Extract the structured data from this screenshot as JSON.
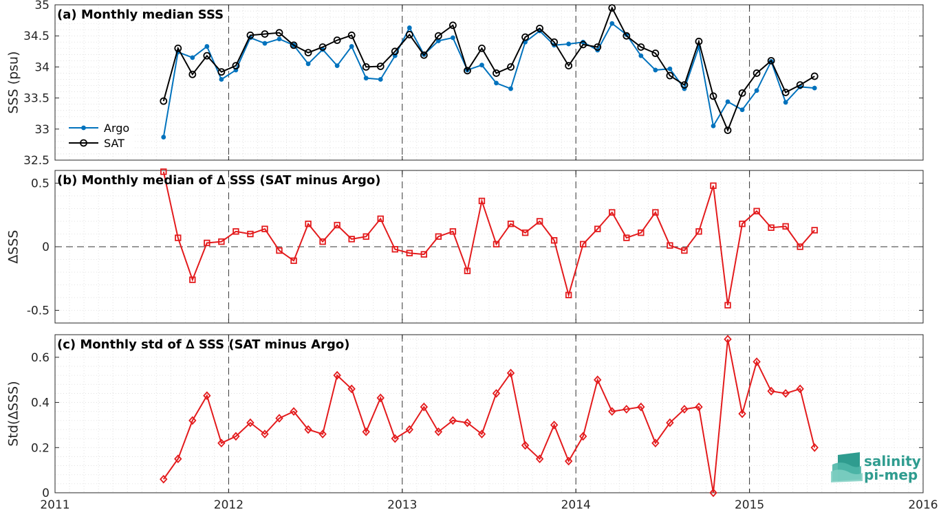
{
  "chart_data": [
    {
      "type": "line",
      "title": "(a) Monthly median SSS",
      "ylabel": "SSS (psu)",
      "xlim": [
        2011,
        2016
      ],
      "ylim": [
        32.5,
        35
      ],
      "yticks": [
        32.5,
        33,
        33.5,
        34,
        34.5,
        35
      ],
      "ytick_labels": [
        "32.5",
        "33",
        "33.5",
        "34",
        "34.5",
        "35"
      ],
      "grid": "minor-dotted",
      "legend": "bottom-left",
      "series": [
        {
          "name": "Argo",
          "color": "#0072bd",
          "marker": "dot",
          "values": [
            32.87,
            34.24,
            34.15,
            34.33,
            33.8,
            33.95,
            34.47,
            34.38,
            34.45,
            34.35,
            34.05,
            34.28,
            34.02,
            34.33,
            33.82,
            33.8,
            34.18,
            34.63,
            34.2,
            34.42,
            34.47,
            33.95,
            34.03,
            33.74,
            33.65,
            34.4,
            34.58,
            34.35,
            34.37,
            34.4,
            34.27,
            34.7,
            34.52,
            34.18,
            33.95,
            33.97,
            33.65,
            34.32,
            33.05,
            33.44,
            33.31,
            33.62,
            34.09,
            33.43,
            33.68,
            33.66
          ]
        },
        {
          "name": "SAT",
          "color": "#000000",
          "marker": "circle",
          "values": [
            33.45,
            34.3,
            33.88,
            34.18,
            33.92,
            34.02,
            34.51,
            34.53,
            34.55,
            34.35,
            34.23,
            34.32,
            34.43,
            34.51,
            34.0,
            34.01,
            34.25,
            34.52,
            34.19,
            34.5,
            34.67,
            33.94,
            34.3,
            33.9,
            34.0,
            34.48,
            34.62,
            34.4,
            34.02,
            34.36,
            34.32,
            34.95,
            34.5,
            34.32,
            34.22,
            33.86,
            33.71,
            34.41,
            33.53,
            32.98,
            33.58,
            33.9,
            34.1,
            33.59,
            33.71,
            33.85
          ]
        }
      ]
    },
    {
      "type": "line",
      "title": "(b) Monthly median of ∆ SSS (SAT minus Argo)",
      "ylabel": "∆SSS",
      "xlim": [
        2011,
        2016
      ],
      "ylim": [
        -0.6,
        0.6
      ],
      "yticks": [
        -0.5,
        0,
        0.5
      ],
      "ytick_labels": [
        "-0.5",
        "0",
        "0.5"
      ],
      "grid": "minor-dotted",
      "series": [
        {
          "name": "",
          "color": "#e31a1c",
          "marker": "square",
          "values": [
            0.59,
            0.07,
            -0.26,
            0.03,
            0.04,
            0.12,
            0.1,
            0.14,
            -0.03,
            -0.11,
            0.18,
            0.04,
            0.17,
            0.06,
            0.08,
            0.22,
            -0.02,
            -0.05,
            -0.06,
            0.08,
            0.12,
            -0.19,
            0.36,
            0.02,
            0.18,
            0.11,
            0.2,
            0.05,
            -0.38,
            0.02,
            0.14,
            0.27,
            0.07,
            0.11,
            0.27,
            0.01,
            -0.03,
            0.12,
            0.48,
            -0.46,
            0.18,
            0.28,
            0.15,
            0.16,
            0.0,
            0.13
          ]
        }
      ]
    },
    {
      "type": "line",
      "title": "(c) Monthly std of ∆ SSS (SAT minus Argo)",
      "ylabel": "Std(∆SSS)",
      "xlim": [
        2011,
        2016
      ],
      "ylim": [
        0,
        0.7
      ],
      "yticks": [
        0,
        0.2,
        0.4,
        0.6
      ],
      "ytick_labels": [
        "0",
        "0.2",
        "0.4",
        "0.6"
      ],
      "grid": "minor-dotted",
      "series": [
        {
          "name": "",
          "color": "#e31a1c",
          "marker": "diamond",
          "values": [
            0.06,
            0.15,
            0.32,
            0.43,
            0.22,
            0.25,
            0.31,
            0.26,
            0.33,
            0.36,
            0.28,
            0.26,
            0.52,
            0.46,
            0.27,
            0.42,
            0.24,
            0.28,
            0.38,
            0.27,
            0.32,
            0.31,
            0.26,
            0.44,
            0.53,
            0.21,
            0.15,
            0.3,
            0.14,
            0.25,
            0.5,
            0.36,
            0.37,
            0.38,
            0.22,
            0.31,
            0.37,
            0.38,
            0.0,
            0.68,
            0.35,
            0.58,
            0.45,
            0.44,
            0.46,
            0.2
          ]
        }
      ]
    }
  ],
  "x_start": 2011.625,
  "x_step": 0.08333,
  "xticks": [
    2011,
    2012,
    2013,
    2014,
    2015,
    2016
  ],
  "xtick_labels": [
    "2011",
    "2012",
    "2013",
    "2014",
    "2015",
    "2016"
  ],
  "logo": {
    "line1": "salinity",
    "line2": "pi-mep"
  }
}
